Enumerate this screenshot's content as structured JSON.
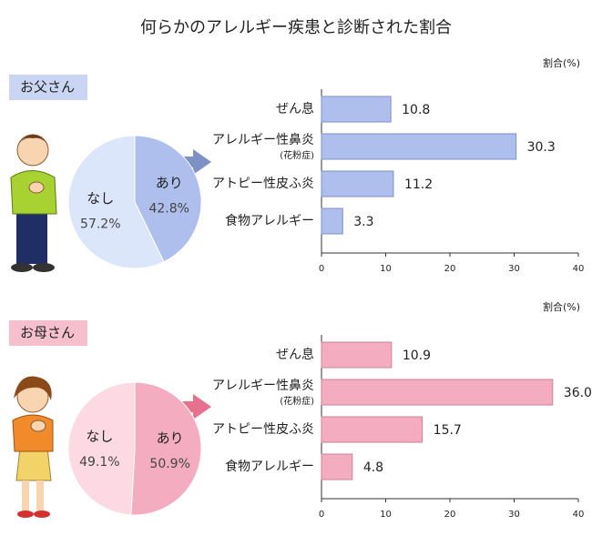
{
  "title": "何らかのアレルギー疾患と診断された割合",
  "chart_data": [
    {
      "type": "pie",
      "title": "お父さん",
      "categories": [
        "あり",
        "なし"
      ],
      "values": [
        42.8,
        57.2
      ],
      "value_labels": [
        "42.8%",
        "57.2%"
      ],
      "colors": [
        "#aebfee",
        "#dce6fb"
      ],
      "box_color": "#c9d5f3"
    },
    {
      "type": "bar",
      "xlabel": "割合(%)",
      "categories": [
        "ぜん息",
        "アレルギー性鼻炎",
        "アトピー性皮ふ炎",
        "食物アレルギー"
      ],
      "category_sublabels": [
        null,
        "(花粉症)",
        null,
        null
      ],
      "values": [
        10.8,
        30.3,
        11.2,
        3.3
      ],
      "value_labels": [
        "10.8",
        "30.3",
        "11.2",
        "3.3"
      ],
      "color": "#aebfee",
      "edge_color": "#7f90c4",
      "xlim": [
        0,
        40
      ],
      "xticks": [
        0,
        10,
        20,
        30,
        40
      ]
    },
    {
      "type": "pie",
      "title": "お母さん",
      "categories": [
        "あり",
        "なし"
      ],
      "values": [
        50.9,
        49.1
      ],
      "value_labels": [
        "50.9%",
        "49.1%"
      ],
      "colors": [
        "#f4adc0",
        "#fcd9e3"
      ],
      "box_color": "#f6bfce"
    },
    {
      "type": "bar",
      "xlabel": "割合(%)",
      "categories": [
        "ぜん息",
        "アレルギー性鼻炎",
        "アトピー性皮ふ炎",
        "食物アレルギー"
      ],
      "category_sublabels": [
        null,
        "(花粉症)",
        null,
        null
      ],
      "values": [
        10.9,
        36.0,
        15.7,
        4.8
      ],
      "value_labels": [
        "10.9",
        "36.0",
        "15.7",
        "4.8"
      ],
      "color": "#f4adc0",
      "edge_color": "#cf8097",
      "xlim": [
        0,
        40
      ],
      "xticks": [
        0,
        10,
        20,
        30,
        40
      ]
    }
  ]
}
